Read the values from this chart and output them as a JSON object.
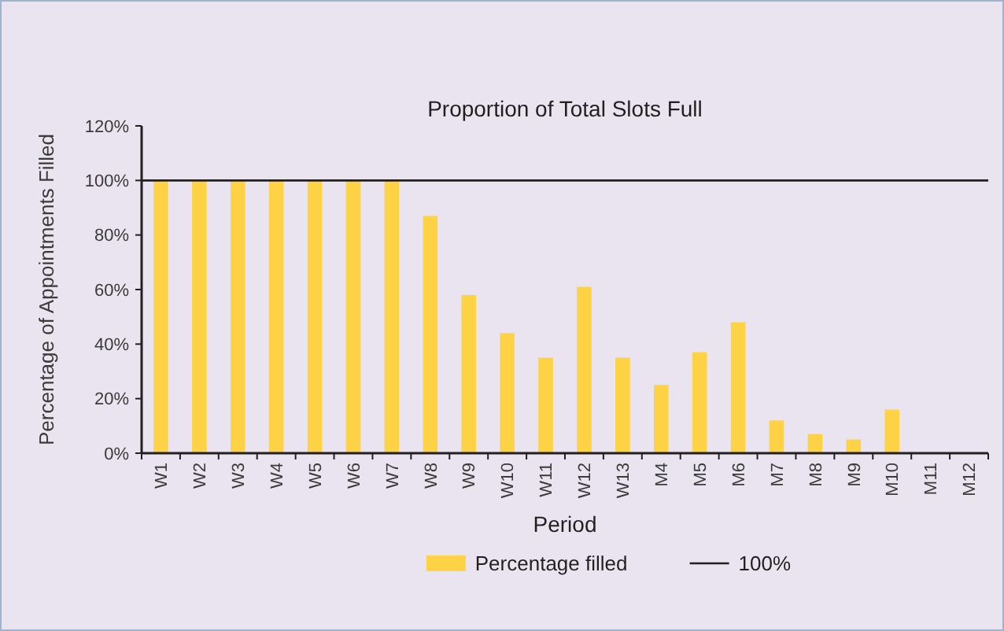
{
  "chart_data": {
    "type": "bar",
    "title": "Proportion of Total Slots Full",
    "xlabel": "Period",
    "ylabel": "Percentage of Appointments Filled",
    "categories": [
      "W1",
      "W2",
      "W3",
      "W4",
      "W5",
      "W6",
      "W7",
      "W8",
      "W9",
      "W10",
      "W11",
      "W12",
      "W13",
      "M4",
      "M5",
      "M6",
      "M7",
      "M8",
      "M9",
      "M10",
      "M11",
      "M12"
    ],
    "series": [
      {
        "name": "Percentage filled",
        "color": "#fdd244",
        "values": [
          100,
          100,
          100,
          100,
          100,
          100,
          100,
          87,
          58,
          44,
          35,
          61,
          35,
          25,
          37,
          48,
          12,
          7,
          5,
          16,
          0,
          0
        ]
      }
    ],
    "ylim": [
      0,
      120
    ],
    "yticks": [
      {
        "value": 0,
        "label": "0%"
      },
      {
        "value": 20,
        "label": "20%"
      },
      {
        "value": 40,
        "label": "40%"
      },
      {
        "value": 60,
        "label": "60%"
      },
      {
        "value": 80,
        "label": "80%"
      },
      {
        "value": 100,
        "label": "100%"
      },
      {
        "value": 120,
        "label": "120%"
      }
    ],
    "ref_lines": [
      {
        "axis": "y",
        "value": 100,
        "label": "100%",
        "color": "#231f20",
        "line_style": "solid"
      }
    ],
    "grid": false,
    "legend": "bottom"
  }
}
